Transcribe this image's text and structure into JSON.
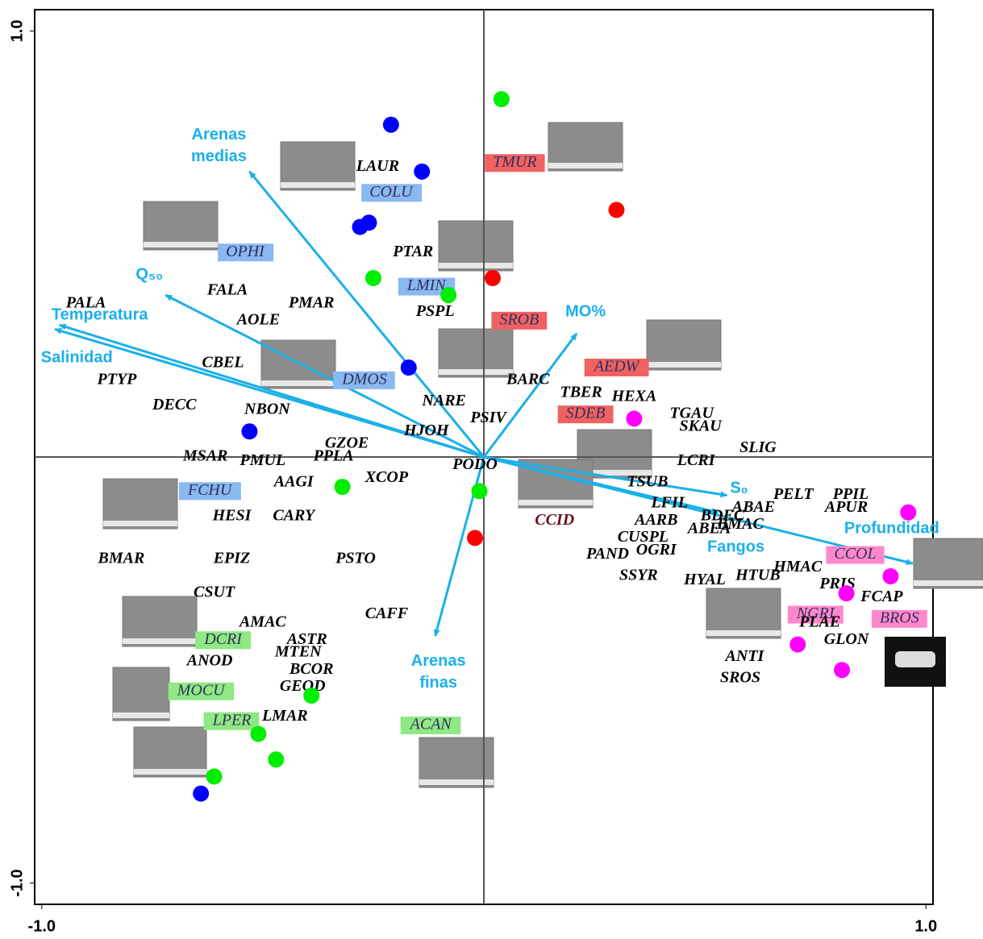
{
  "chart_data": {
    "type": "biplot",
    "xlim": [
      -1.016,
      1.016
    ],
    "ylim": [
      -1.05,
      1.05
    ],
    "xticks": [
      {
        "value": -1,
        "label": "-1.0"
      },
      {
        "value": 1,
        "label": "1.0"
      }
    ],
    "yticks": [
      {
        "value": -1,
        "label": "-1.0"
      },
      {
        "value": 1,
        "label": "1.0"
      }
    ],
    "vector_color": "#1ab0e8",
    "vectors": [
      {
        "name": "Arenas medias",
        "x": -0.53,
        "y": 0.67
      },
      {
        "name": "Q₅₀",
        "x": -0.72,
        "y": 0.38
      },
      {
        "name": "Temperatura",
        "x": -0.96,
        "y": 0.31
      },
      {
        "name": "Salinidad",
        "x": -0.97,
        "y": 0.3
      },
      {
        "name": "MO%",
        "x": 0.21,
        "y": 0.29
      },
      {
        "name": "S₀",
        "x": 0.55,
        "y": -0.09
      },
      {
        "name": "Profundidad",
        "x": 0.97,
        "y": -0.25
      },
      {
        "name": "Fangos",
        "x": 0.53,
        "y": -0.13
      },
      {
        "name": "Arenas finas",
        "x": -0.11,
        "y": -0.42
      }
    ],
    "series": [
      {
        "color": "#0000ff",
        "x": [
          -0.21,
          -0.14,
          -0.28,
          -0.26,
          -0.17,
          -0.53,
          -0.64
        ],
        "values": [
          0.78,
          0.67,
          0.54,
          0.55,
          0.21,
          0.06,
          -0.79
        ]
      },
      {
        "color": "#00ee00",
        "x": [
          0.04,
          -0.25,
          -0.08,
          -0.01,
          -0.32,
          -0.39,
          -0.51,
          -0.47,
          -0.61
        ],
        "values": [
          0.84,
          0.42,
          0.38,
          -0.08,
          -0.07,
          -0.56,
          -0.65,
          -0.71,
          -0.75
        ]
      },
      {
        "color": "#ff0000",
        "x": [
          0.3,
          0.02,
          -0.02
        ],
        "values": [
          0.58,
          0.42,
          -0.19
        ]
      },
      {
        "color": "#ff00ff",
        "x": [
          0.34,
          0.96,
          0.92,
          0.82,
          0.71,
          0.81
        ],
        "values": [
          0.09,
          -0.13,
          -0.28,
          -0.32,
          -0.44,
          -0.5
        ]
      }
    ],
    "species": [
      {
        "name": "LAUR",
        "x": -0.24,
        "y": 0.68
      },
      {
        "name": "COLU",
        "x": -0.21,
        "y": 0.62,
        "box": "#8ab8f0"
      },
      {
        "name": "TMUR",
        "x": 0.07,
        "y": 0.69,
        "box": "#f06262"
      },
      {
        "name": "OPHI",
        "x": -0.54,
        "y": 0.48,
        "box": "#8ab8f0"
      },
      {
        "name": "PTAR",
        "x": -0.16,
        "y": 0.48
      },
      {
        "name": "LMIN",
        "x": -0.13,
        "y": 0.4,
        "box": "#8ab8f0"
      },
      {
        "name": "FALA",
        "x": -0.58,
        "y": 0.39
      },
      {
        "name": "PMAR",
        "x": -0.39,
        "y": 0.36
      },
      {
        "name": "PALA",
        "x": -0.9,
        "y": 0.36
      },
      {
        "name": "AOLE",
        "x": -0.51,
        "y": 0.32
      },
      {
        "name": "PSPL",
        "x": -0.11,
        "y": 0.34
      },
      {
        "name": "SROB",
        "x": 0.08,
        "y": 0.32,
        "box": "#f06262"
      },
      {
        "name": "AEDW",
        "x": 0.3,
        "y": 0.21,
        "box": "#f06262"
      },
      {
        "name": "CBEL",
        "x": -0.59,
        "y": 0.22
      },
      {
        "name": "DMOS",
        "x": -0.27,
        "y": 0.18,
        "box": "#8ab8f0"
      },
      {
        "name": "PTYP",
        "x": -0.83,
        "y": 0.18
      },
      {
        "name": "BARC",
        "x": 0.1,
        "y": 0.18
      },
      {
        "name": "DECC",
        "x": -0.7,
        "y": 0.12
      },
      {
        "name": "NARE",
        "x": -0.09,
        "y": 0.13
      },
      {
        "name": "TBER",
        "x": 0.22,
        "y": 0.15
      },
      {
        "name": "HEXA",
        "x": 0.34,
        "y": 0.14
      },
      {
        "name": "SDEB",
        "x": 0.23,
        "y": 0.1,
        "box": "#f06262"
      },
      {
        "name": "NBON",
        "x": -0.49,
        "y": 0.11
      },
      {
        "name": "PSIV",
        "x": 0.01,
        "y": 0.09
      },
      {
        "name": "TGAU",
        "x": 0.47,
        "y": 0.1
      },
      {
        "name": "SKAU",
        "x": 0.49,
        "y": 0.07
      },
      {
        "name": "HJOH",
        "x": -0.13,
        "y": 0.06
      },
      {
        "name": "GZOE",
        "x": -0.31,
        "y": 0.03
      },
      {
        "name": "SLIG",
        "x": 0.62,
        "y": 0.02
      },
      {
        "name": "MSAR",
        "x": -0.63,
        "y": 0.0
      },
      {
        "name": "PMUL",
        "x": -0.5,
        "y": -0.01
      },
      {
        "name": "PPLA",
        "x": -0.34,
        "y": 0.0
      },
      {
        "name": "PODO",
        "x": -0.02,
        "y": -0.02
      },
      {
        "name": "LCRI",
        "x": 0.48,
        "y": -0.01
      },
      {
        "name": "XCOP",
        "x": -0.22,
        "y": -0.05
      },
      {
        "name": "AAGI",
        "x": -0.43,
        "y": -0.06
      },
      {
        "name": "FCHU",
        "x": -0.62,
        "y": -0.08,
        "box": "#8ab8f0"
      },
      {
        "name": "TSUB",
        "x": 0.37,
        "y": -0.06
      },
      {
        "name": "PELT",
        "x": 0.7,
        "y": -0.09
      },
      {
        "name": "PPIL",
        "x": 0.83,
        "y": -0.09
      },
      {
        "name": "CCID",
        "x": 0.16,
        "y": -0.15,
        "text_color": "#6b0f1a"
      },
      {
        "name": "HESI",
        "x": -0.57,
        "y": -0.14
      },
      {
        "name": "CARY",
        "x": -0.43,
        "y": -0.14
      },
      {
        "name": "LFIL",
        "x": 0.42,
        "y": -0.11
      },
      {
        "name": "ABAE",
        "x": 0.61,
        "y": -0.12
      },
      {
        "name": "APUR",
        "x": 0.82,
        "y": -0.12
      },
      {
        "name": "AARB",
        "x": 0.39,
        "y": -0.15
      },
      {
        "name": "BDEC",
        "x": 0.54,
        "y": -0.14
      },
      {
        "name": "BMAC",
        "x": 0.58,
        "y": -0.16
      },
      {
        "name": "ABEA",
        "x": 0.51,
        "y": -0.17
      },
      {
        "name": "CUSPL",
        "x": 0.36,
        "y": -0.19
      },
      {
        "name": "OGRI",
        "x": 0.39,
        "y": -0.22
      },
      {
        "name": "PAND",
        "x": 0.28,
        "y": -0.23
      },
      {
        "name": "BMAR",
        "x": -0.82,
        "y": -0.24
      },
      {
        "name": "EPIZ",
        "x": -0.57,
        "y": -0.24
      },
      {
        "name": "PSTO",
        "x": -0.29,
        "y": -0.24
      },
      {
        "name": "CCOL",
        "x": 0.84,
        "y": -0.23,
        "box": "#ff88cc"
      },
      {
        "name": "HMAC",
        "x": 0.71,
        "y": -0.26
      },
      {
        "name": "SSYR",
        "x": 0.35,
        "y": -0.28
      },
      {
        "name": "HYAL",
        "x": 0.5,
        "y": -0.29
      },
      {
        "name": "HTUB",
        "x": 0.62,
        "y": -0.28
      },
      {
        "name": "PRIS",
        "x": 0.8,
        "y": -0.3
      },
      {
        "name": "CSUT",
        "x": -0.61,
        "y": -0.32
      },
      {
        "name": "FCAP",
        "x": 0.9,
        "y": -0.33
      },
      {
        "name": "CAFF",
        "x": -0.22,
        "y": -0.37
      },
      {
        "name": "NGRI",
        "x": 0.75,
        "y": -0.37,
        "box": "#ff88cc"
      },
      {
        "name": "BROS",
        "x": 0.94,
        "y": -0.38,
        "box": "#ff88cc"
      },
      {
        "name": "PLAE",
        "x": 0.76,
        "y": -0.39
      },
      {
        "name": "AMAC",
        "x": -0.5,
        "y": -0.39
      },
      {
        "name": "DCRI",
        "x": -0.59,
        "y": -0.43,
        "box": "#90e884"
      },
      {
        "name": "ASTR",
        "x": -0.4,
        "y": -0.43
      },
      {
        "name": "GLON",
        "x": 0.82,
        "y": -0.43
      },
      {
        "name": "MTEN",
        "x": -0.42,
        "y": -0.46
      },
      {
        "name": "ANOD",
        "x": -0.62,
        "y": -0.48
      },
      {
        "name": "ANTI",
        "x": 0.59,
        "y": -0.47
      },
      {
        "name": "BCOR",
        "x": -0.39,
        "y": -0.5
      },
      {
        "name": "SROS",
        "x": 0.58,
        "y": -0.52
      },
      {
        "name": "GEOD",
        "x": -0.41,
        "y": -0.54
      },
      {
        "name": "MOCU",
        "x": -0.64,
        "y": -0.55,
        "box": "#90e884"
      },
      {
        "name": "LMAR",
        "x": -0.45,
        "y": -0.61
      },
      {
        "name": "LPER",
        "x": -0.57,
        "y": -0.62,
        "box": "#90e884"
      },
      {
        "name": "ACAN",
        "x": -0.12,
        "y": -0.63,
        "box": "#90e884"
      }
    ]
  }
}
